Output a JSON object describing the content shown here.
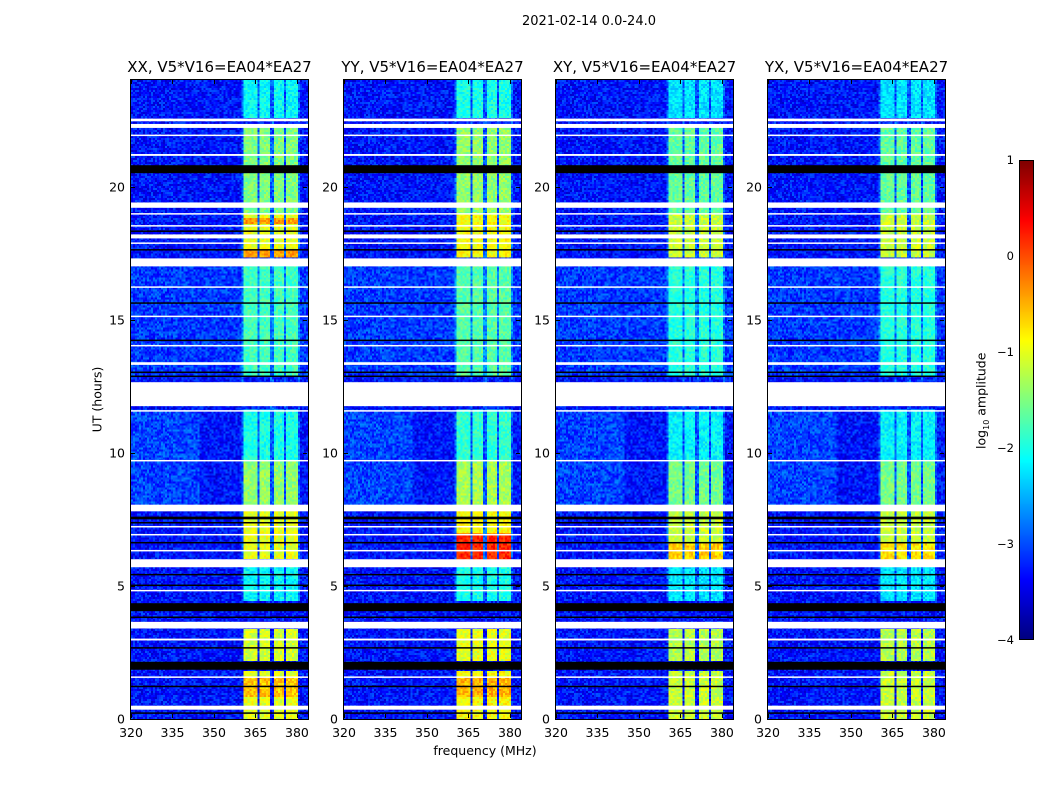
{
  "chart_data": {
    "type": "heatmap",
    "title": "2021-02-14 0.0-24.0",
    "xlabel": "frequency (MHz)",
    "ylabel": "UT (hours)",
    "xlim": [
      320,
      384
    ],
    "ylim": [
      0,
      24
    ],
    "xticks": [
      "320",
      "335",
      "350",
      "365",
      "380"
    ],
    "xtick_values": [
      320,
      335,
      350,
      365,
      380
    ],
    "yticks": [
      "0",
      "5",
      "10",
      "15",
      "20"
    ],
    "ytick_values": [
      0,
      5,
      10,
      15,
      20
    ],
    "colorbar": {
      "label": "log10 amplitude",
      "label_main": "log",
      "label_sub": "10",
      "label_rest": " amplitude",
      "range": [
        -4,
        1
      ],
      "ticks": [
        "1",
        "0",
        "−1",
        "−2",
        "−3",
        "−4"
      ],
      "tick_values": [
        1,
        0,
        -1,
        -2,
        -3,
        -4
      ],
      "colormap": "jet"
    },
    "panels": [
      {
        "title": "XX, V5*V16=EA04*EA27",
        "offset": 0.0,
        "extra": [
          {
            "t": [
              17.3,
              17.6
            ],
            "log_amp": -0.4
          },
          {
            "t": [
              18.6,
              18.8
            ],
            "log_amp": -0.4
          },
          {
            "t": [
              0.8,
              1.6
            ],
            "log_amp": -0.6
          }
        ]
      },
      {
        "title": "YY, V5*V16=EA04*EA27",
        "offset": 0.1,
        "extra": [
          {
            "t": [
              5.9,
              7.0
            ],
            "log_amp": 0.1
          },
          {
            "t": [
              0.8,
              1.6
            ],
            "log_amp": -0.6
          }
        ]
      },
      {
        "title": "XY, V5*V16=EA04*EA27",
        "offset": -0.15,
        "extra": [
          {
            "t": [
              5.9,
              6.6
            ],
            "log_amp": -0.5
          }
        ]
      },
      {
        "title": "YX, V5*V16=EA04*EA27",
        "offset": -0.15,
        "extra": [
          {
            "t": [
              5.9,
              6.6
            ],
            "log_amp": -0.6
          }
        ]
      }
    ],
    "background_log_amp": -3.3,
    "rfi_channels_mhz": [
      [
        360.5,
        365.5
      ],
      [
        366.5,
        370.5
      ],
      [
        371.3,
        375.3
      ],
      [
        375.7,
        380.0
      ]
    ],
    "rfi_blocks": [
      {
        "t": [
          22.6,
          24.0
        ],
        "log_amp": -2.1
      },
      {
        "t": [
          19.0,
          22.3
        ],
        "log_amp": -1.5
      },
      {
        "t": [
          17.3,
          19.0
        ],
        "log_amp": -1.0
      },
      {
        "t": [
          12.9,
          17.0
        ],
        "log_amp": -1.8
      },
      {
        "t": [
          9.7,
          11.6
        ],
        "log_amp": -2.0
      },
      {
        "t": [
          8.0,
          9.7
        ],
        "log_amp": -1.4
      },
      {
        "t": [
          6.0,
          8.0
        ],
        "log_amp": -1.0
      },
      {
        "t": [
          4.4,
          5.7
        ],
        "log_amp": -2.1
      },
      {
        "t": [
          2.2,
          3.4
        ],
        "log_amp": -1.1
      },
      {
        "t": [
          0.0,
          1.8
        ],
        "log_amp": -1.0
      }
    ],
    "flagged_intervals_hours": [
      [
        22.45,
        22.55
      ],
      [
        22.2,
        22.35
      ],
      [
        21.9,
        21.95
      ],
      [
        21.15,
        21.22
      ],
      [
        19.2,
        19.4
      ],
      [
        18.95,
        19.0
      ],
      [
        18.5,
        18.55
      ],
      [
        18.05,
        18.2
      ],
      [
        17.85,
        17.9
      ],
      [
        17.0,
        17.3
      ],
      [
        16.2,
        16.25
      ],
      [
        15.1,
        15.15
      ],
      [
        14.0,
        14.05
      ],
      [
        13.3,
        13.4
      ],
      [
        11.75,
        12.65
      ],
      [
        11.55,
        11.6
      ],
      [
        9.68,
        9.73
      ],
      [
        7.8,
        8.05
      ],
      [
        7.2,
        7.25
      ],
      [
        6.9,
        6.95
      ],
      [
        6.3,
        6.35
      ],
      [
        5.7,
        6.0
      ],
      [
        4.8,
        4.85
      ],
      [
        3.4,
        3.65
      ],
      [
        2.95,
        3.02
      ],
      [
        1.55,
        1.6
      ],
      [
        0.35,
        0.5
      ]
    ],
    "zero_intervals_hours": [
      [
        20.5,
        20.8
      ],
      [
        18.3,
        18.35
      ],
      [
        17.6,
        17.65
      ],
      [
        15.6,
        15.65
      ],
      [
        14.2,
        14.25
      ],
      [
        13.0,
        13.05
      ],
      [
        12.85,
        12.9
      ],
      [
        7.5,
        7.6
      ],
      [
        7.35,
        7.4
      ],
      [
        6.6,
        6.65
      ],
      [
        5.4,
        5.45
      ],
      [
        5.0,
        5.05
      ],
      [
        4.05,
        4.35
      ],
      [
        3.8,
        3.85
      ],
      [
        2.65,
        2.7
      ],
      [
        1.85,
        2.15
      ],
      [
        1.2,
        1.25
      ],
      [
        0.2,
        0.25
      ]
    ]
  }
}
